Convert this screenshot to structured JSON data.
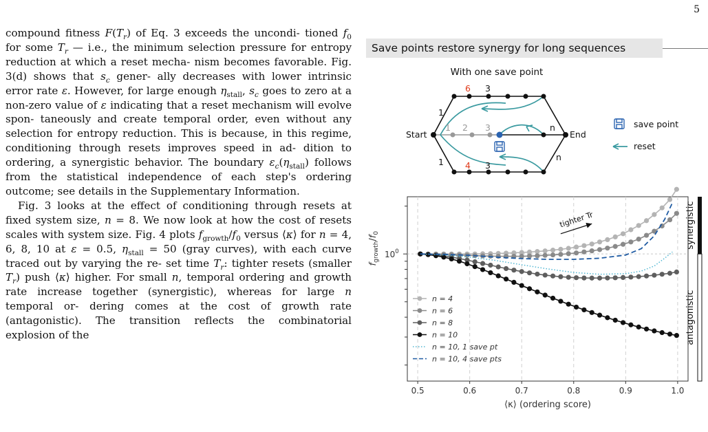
{
  "page_number": "5",
  "body_text": {
    "p1_lines": [
      "compound fitness <i>F</i>(<i>T<sub>r</sub></i>) of Eq. 3 exceeds the uncondi-",
      "tioned <i>f</i><sub>0</sub> for some <i>T<sub>r</sub></i> — i.e., the minimum selection",
      "pressure for entropy reduction at which a reset mecha-",
      "nism becomes favorable. Fig. 3(d) shows that <i>s<sub>c</sub></i> gener-",
      "ally decreases with lower intrinsic error rate <i>ε</i>. However,",
      "for large enough <i>η</i><sub>stall</sub>, <i>s<sub>c</sub></i> goes to zero at a non-zero value",
      "of <i>ε</i> indicating that a reset mechanism will evolve spon-",
      "taneously and create temporal order, even without any",
      "selection for entropy reduction. This is because, in this",
      "regime, conditioning through resets improves speed in ad-",
      "dition to ordering, a synergistic behavior. The boundary",
      "<i>ε<sub>c</sub></i>(<i>η</i><sub>stall</sub>) follows from the statistical independence of each",
      "step's ordering outcome; see details in the Supplementary",
      "Information."
    ],
    "p2_lines": [
      "Fig. 3 looks at the effect of conditioning through resets",
      "at fixed system size, <i>n</i> = 8. We now look at how the cost",
      "of resets scales with system size. Fig. 4 plots <i>f</i><sub>growth</sub>/<i>f</i><sub>0</sub>",
      "versus ⟨<i>κ</i>⟩ for <i>n</i> = 4, 6, 8, 10 at <i>ε</i> = 0.5, <i>η</i><sub>stall</sub> = 50 (gray",
      "curves), with each curve traced out by varying the re-",
      "set time <i>T<sub>r</sub></i>: tighter resets (smaller <i>T<sub>r</sub></i>) push ⟨<i>κ</i>⟩ higher.",
      "For small <i>n</i>, temporal ordering and growth rate increase",
      "together (synergistic), whereas for large <i>n</i> temporal or-",
      "dering comes at the cost of growth rate (antagonistic).",
      "The transition reflects the combinatorial explosion of the"
    ]
  },
  "panel_title": "Save points restore synergy for long sequences",
  "diagram": {
    "title": "With one save point",
    "start_label": "Start",
    "end_label": "End",
    "top_labels": [
      "6",
      "3"
    ],
    "top_left_label": "1",
    "mid_labels": [
      "1",
      "2",
      "3"
    ],
    "mid_n": "n",
    "bot_left_label": "1",
    "bot_labels": [
      "4",
      "3"
    ],
    "right_n": "n",
    "legend_save": "save point",
    "legend_reset": "reset",
    "colors": {
      "teal": "#3a9aa0",
      "blue": "#2a63b0",
      "red": "#e03a1a",
      "gray": "#9a9a9a"
    }
  },
  "chart_data": {
    "type": "line",
    "xlabel": "⟨κ⟩ (ordering score)",
    "ylabel": "f_growth/f_0",
    "xlim": [
      0.48,
      1.02
    ],
    "log_y": true,
    "ylim_log10": [
      -0.8,
      0.36
    ],
    "y_tick_label": "10",
    "y_tick_exp": "0",
    "x_ticks": [
      "0.5",
      "0.6",
      "0.7",
      "0.8",
      "0.9",
      "1.0"
    ],
    "annotation": "tighter Tr",
    "side_labels": {
      "top": "synergistic",
      "bottom": "antagonistic"
    },
    "grid": "vertical dashed",
    "legend_position": "lower-left",
    "series": [
      {
        "name": "n = 4",
        "style": "markers",
        "color": "#b4b4b4",
        "x": [
          0.505,
          0.52,
          0.535,
          0.55,
          0.565,
          0.58,
          0.595,
          0.61,
          0.625,
          0.64,
          0.655,
          0.67,
          0.685,
          0.7,
          0.715,
          0.73,
          0.745,
          0.76,
          0.775,
          0.79,
          0.805,
          0.82,
          0.835,
          0.85,
          0.865,
          0.88,
          0.895,
          0.91,
          0.925,
          0.94,
          0.955,
          0.97,
          0.985,
          0.998
        ],
        "y": [
          1.0,
          1.0,
          1.0,
          1.0,
          1.0,
          1.0,
          1.0,
          1.0,
          1.003,
          1.005,
          1.008,
          1.012,
          1.016,
          1.022,
          1.028,
          1.036,
          1.045,
          1.057,
          1.07,
          1.085,
          1.105,
          1.128,
          1.155,
          1.19,
          1.23,
          1.28,
          1.34,
          1.42,
          1.51,
          1.62,
          1.77,
          1.95,
          2.2,
          2.55
        ]
      },
      {
        "name": "n = 6",
        "style": "markers",
        "color": "#8a8a8a",
        "x": [
          0.505,
          0.52,
          0.535,
          0.55,
          0.565,
          0.58,
          0.595,
          0.61,
          0.625,
          0.64,
          0.655,
          0.67,
          0.685,
          0.7,
          0.715,
          0.73,
          0.745,
          0.76,
          0.775,
          0.79,
          0.805,
          0.82,
          0.835,
          0.85,
          0.865,
          0.88,
          0.895,
          0.91,
          0.925,
          0.94,
          0.955,
          0.97,
          0.985,
          0.998
        ],
        "y": [
          1.0,
          0.998,
          0.995,
          0.992,
          0.988,
          0.984,
          0.98,
          0.976,
          0.972,
          0.969,
          0.967,
          0.966,
          0.966,
          0.967,
          0.97,
          0.974,
          0.98,
          0.986,
          0.994,
          1.004,
          1.015,
          1.03,
          1.046,
          1.065,
          1.088,
          1.115,
          1.15,
          1.19,
          1.24,
          1.31,
          1.39,
          1.5,
          1.64,
          1.8
        ]
      },
      {
        "name": "n = 8",
        "style": "markers",
        "color": "#5e5e5e",
        "x": [
          0.505,
          0.52,
          0.535,
          0.55,
          0.565,
          0.58,
          0.595,
          0.61,
          0.625,
          0.64,
          0.655,
          0.67,
          0.685,
          0.7,
          0.715,
          0.73,
          0.745,
          0.76,
          0.775,
          0.79,
          0.805,
          0.82,
          0.835,
          0.85,
          0.865,
          0.88,
          0.895,
          0.91,
          0.925,
          0.94,
          0.955,
          0.97,
          0.985,
          0.998
        ],
        "y": [
          1.0,
          0.995,
          0.985,
          0.972,
          0.955,
          0.936,
          0.915,
          0.893,
          0.871,
          0.85,
          0.829,
          0.809,
          0.791,
          0.775,
          0.76,
          0.747,
          0.736,
          0.727,
          0.719,
          0.713,
          0.709,
          0.706,
          0.705,
          0.705,
          0.706,
          0.708,
          0.711,
          0.715,
          0.72,
          0.727,
          0.735,
          0.745,
          0.756,
          0.77
        ]
      },
      {
        "name": "n = 10",
        "style": "markers",
        "color": "#111111",
        "x": [
          0.505,
          0.52,
          0.535,
          0.55,
          0.565,
          0.58,
          0.595,
          0.61,
          0.625,
          0.64,
          0.655,
          0.67,
          0.685,
          0.7,
          0.715,
          0.73,
          0.745,
          0.76,
          0.775,
          0.79,
          0.805,
          0.82,
          0.835,
          0.85,
          0.865,
          0.88,
          0.895,
          0.91,
          0.925,
          0.94,
          0.955,
          0.97,
          0.985,
          0.998
        ],
        "y": [
          1.0,
          0.99,
          0.975,
          0.955,
          0.93,
          0.9,
          0.867,
          0.832,
          0.797,
          0.762,
          0.728,
          0.695,
          0.663,
          0.633,
          0.604,
          0.577,
          0.551,
          0.527,
          0.504,
          0.483,
          0.463,
          0.445,
          0.428,
          0.412,
          0.397,
          0.383,
          0.37,
          0.358,
          0.347,
          0.337,
          0.328,
          0.32,
          0.313,
          0.307
        ]
      },
      {
        "name": "n = 10, 1 save pt",
        "style": "dotted",
        "color": "#52b7d3",
        "x": [
          0.505,
          0.55,
          0.6,
          0.65,
          0.7,
          0.75,
          0.8,
          0.85,
          0.9,
          0.93,
          0.955,
          0.975,
          0.99
        ],
        "y": [
          1.0,
          0.985,
          0.955,
          0.91,
          0.855,
          0.805,
          0.765,
          0.745,
          0.752,
          0.78,
          0.84,
          0.94,
          1.03
        ]
      },
      {
        "name": "n = 10, 4 save pts",
        "style": "dashed",
        "color": "#1f5ba3",
        "x": [
          0.505,
          0.55,
          0.6,
          0.65,
          0.7,
          0.75,
          0.8,
          0.85,
          0.9,
          0.93,
          0.955,
          0.975,
          0.99
        ],
        "y": [
          1.0,
          0.995,
          0.98,
          0.955,
          0.935,
          0.925,
          0.925,
          0.94,
          0.985,
          1.08,
          1.3,
          1.65,
          2.1
        ]
      }
    ]
  }
}
